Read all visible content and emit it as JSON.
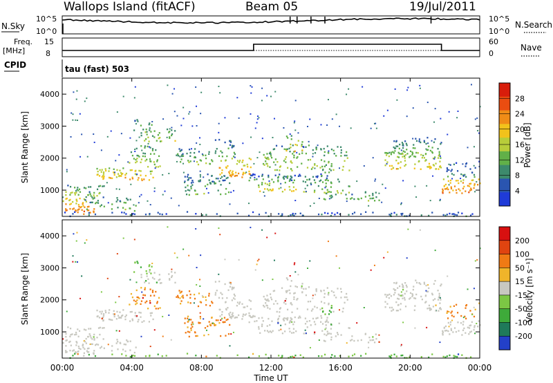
{
  "header": {
    "station": "Wallops Island (fitACF)",
    "beam": "Beam 05",
    "date": "19/Jul/2011"
  },
  "panel_labels": {
    "nsky": "N.Sky",
    "nsearch": "N.Search",
    "freq": "Freq.",
    "freq_unit": "[MHz]",
    "nave": "Nave",
    "cpid": "CPID",
    "cpid_value": "tau (fast) 503"
  },
  "noise_axes": {
    "left_top": "10^5",
    "left_bottom": "10^0",
    "right_top": "10^5",
    "right_bottom": "10^0"
  },
  "freq_axes": {
    "left_top": "15",
    "left_bottom": "8",
    "right_top": "60",
    "right_bottom": "0"
  },
  "colors": {
    "power_scale": [
      "#1f3bd8",
      "#2a55b0",
      "#3d8a6c",
      "#61b048",
      "#b8cd3a",
      "#f2c21b",
      "#f08c17",
      "#ea4d11",
      "#d81d0b"
    ],
    "velocity_scale": [
      "#2340c8",
      "#1f7a5a",
      "#3eaa3a",
      "#7cc744",
      "#c8c8c0",
      "#f0b42a",
      "#f07a14",
      "#e04410",
      "#d81010"
    ]
  },
  "chart_data": [
    {
      "type": "heatmap",
      "name": "power-panel",
      "xlabel": "",
      "ylabel": "Slant Range [km]",
      "xlim": [
        "00:00",
        "00:00"
      ],
      "ylim": [
        180,
        4500
      ],
      "y_ticks": [
        "1000",
        "2000",
        "3000",
        "4000"
      ],
      "colorbar": {
        "label": "Power [dB]",
        "ticks": [
          "4",
          "8",
          "12",
          "16",
          "20",
          "24",
          "28"
        ]
      }
    },
    {
      "type": "heatmap",
      "name": "velocity-panel",
      "xlabel": "Time UT",
      "ylabel": "Slant Range [km]",
      "xlim": [
        "00:00",
        "00:00"
      ],
      "ylim": [
        180,
        4500
      ],
      "x_ticks": [
        "00:00",
        "04:00",
        "08:00",
        "12:00",
        "16:00",
        "20:00",
        "00:00"
      ],
      "y_ticks": [
        "1000",
        "2000",
        "3000",
        "4000"
      ],
      "colorbar": {
        "label": "Velocity [m s⁻¹]",
        "ticks": [
          "200",
          "100",
          "50",
          "15",
          "-15",
          "-50",
          "-100",
          "-200"
        ]
      }
    }
  ],
  "blobs": [
    {
      "t0": 0.0,
      "t1": 1.8,
      "r0": 250,
      "r1": 750,
      "pw": 24,
      "vel": "gray",
      "d": 0.9
    },
    {
      "t0": 0.0,
      "t1": 2.4,
      "r0": 780,
      "r1": 1150,
      "pw": 14,
      "vel": "gray",
      "d": 0.7
    },
    {
      "t0": 1.2,
      "t1": 4.2,
      "r0": 350,
      "r1": 800,
      "pw": 12,
      "vel": "gray",
      "d": 0.45
    },
    {
      "t0": 1.8,
      "t1": 5.2,
      "r0": 1300,
      "r1": 1700,
      "pw": 20,
      "vel": "gray",
      "d": 0.8
    },
    {
      "t0": 3.8,
      "t1": 5.6,
      "r0": 1700,
      "r1": 2400,
      "pw": 14,
      "vel": "orange",
      "d": 0.55
    },
    {
      "t0": 4.5,
      "t1": 6.5,
      "r0": 2500,
      "r1": 2900,
      "pw": 14,
      "vel": "gray",
      "d": 0.6
    },
    {
      "t0": 4.0,
      "t1": 5.2,
      "r0": 2800,
      "r1": 3200,
      "pw": 10,
      "vel": "green",
      "d": 0.5
    },
    {
      "t0": 6.5,
      "t1": 8.6,
      "r0": 1800,
      "r1": 2300,
      "pw": 12,
      "vel": "orange",
      "d": 0.65
    },
    {
      "t0": 7.0,
      "t1": 9.6,
      "r0": 850,
      "r1": 1500,
      "pw": 10,
      "vel": "orange",
      "d": 0.6
    },
    {
      "t0": 9.0,
      "t1": 10.8,
      "r0": 1400,
      "r1": 2000,
      "pw": 22,
      "vel": "gray",
      "d": 0.75
    },
    {
      "t0": 8.5,
      "t1": 10.0,
      "r0": 2000,
      "r1": 2600,
      "pw": 10,
      "vel": "gray",
      "d": 0.45
    },
    {
      "t0": 10.6,
      "t1": 15.5,
      "r0": 1300,
      "r1": 1500,
      "pw": 8,
      "vel": "gray",
      "d": 0.7
    },
    {
      "t0": 11.2,
      "t1": 13.4,
      "r0": 950,
      "r1": 1450,
      "pw": 16,
      "vel": "gray",
      "d": 0.6
    },
    {
      "t0": 11.5,
      "t1": 16.5,
      "r0": 1600,
      "r1": 2400,
      "pw": 14,
      "vel": "gray",
      "d": 0.45
    },
    {
      "t0": 13.8,
      "t1": 16.5,
      "r0": 900,
      "r1": 1350,
      "pw": 14,
      "vel": "gray",
      "d": 0.55
    },
    {
      "t0": 14.8,
      "t1": 18.2,
      "r0": 650,
      "r1": 950,
      "pw": 12,
      "vel": "gray",
      "d": 0.5
    },
    {
      "t0": 14.8,
      "t1": 15.5,
      "r0": 1450,
      "r1": 1900,
      "pw": 12,
      "vel": "green",
      "d": 0.7
    },
    {
      "t0": 12.8,
      "t1": 13.8,
      "r0": 2200,
      "r1": 2700,
      "pw": 18,
      "vel": "gray",
      "d": 0.5
    },
    {
      "t0": 18.5,
      "t1": 21.8,
      "r0": 1650,
      "r1": 2200,
      "pw": 18,
      "vel": "gray",
      "d": 0.85
    },
    {
      "t0": 18.8,
      "t1": 21.8,
      "r0": 2200,
      "r1": 2650,
      "pw": 10,
      "vel": "gray",
      "d": 0.55
    },
    {
      "t0": 21.8,
      "t1": 24.0,
      "r0": 900,
      "r1": 1350,
      "pw": 24,
      "vel": "gray",
      "d": 0.85
    },
    {
      "t0": 21.8,
      "t1": 24.0,
      "r0": 1350,
      "r1": 1900,
      "pw": 8,
      "vel": "orange",
      "d": 0.35
    },
    {
      "t0": 0.0,
      "t1": 24.0,
      "r0": 180,
      "r1": 320,
      "pw": 6,
      "vel": "green",
      "d": 0.45
    }
  ]
}
